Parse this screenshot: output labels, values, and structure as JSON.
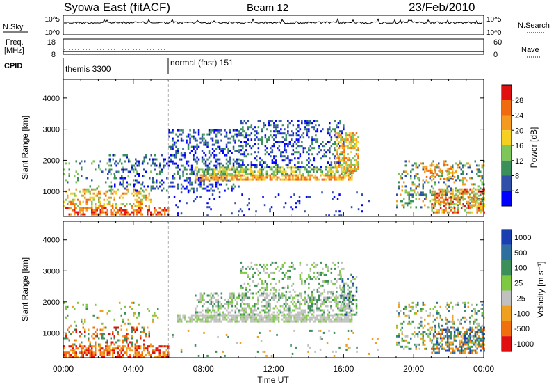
{
  "header": {
    "station": "Syowa East (fitACF)",
    "beam": "Beam 12",
    "date": "23/Feb/2010"
  },
  "status_panels": {
    "nsky_label": "N.Sky",
    "nsky_ticks": [
      "10^5",
      "10^0"
    ],
    "nsearch_label": "N.Search",
    "nsearch_ticks": [
      "10^5",
      "10^0"
    ],
    "freq_label_line1": "Freq.",
    "freq_label_line2": "[MHz]",
    "freq_ticks": [
      "18",
      "8"
    ],
    "nave_label": "Nave",
    "nave_ticks": [
      "60",
      "0"
    ],
    "cpid_label": "CPID",
    "cpid_segments": [
      {
        "name": "themis 3300",
        "start_hour": 0,
        "end_hour": 6
      },
      {
        "name": "normal (fast) 151",
        "start_hour": 6,
        "end_hour": 24
      }
    ]
  },
  "chart_data": [
    {
      "type": "heatmap",
      "name": "power",
      "ylabel": "Slant Range [km]",
      "xlabel": "",
      "xlim": [
        0,
        24
      ],
      "ylim": [
        200,
        4600
      ],
      "y_ticks": [
        "1000",
        "2000",
        "3000",
        "4000"
      ],
      "y_tick_values": [
        1000,
        2000,
        3000,
        4000
      ],
      "colorbar": {
        "label": "Power [dB]",
        "ticks": [
          "4",
          "8",
          "12",
          "16",
          "20",
          "24",
          "28"
        ],
        "tick_values": [
          4,
          8,
          12,
          16,
          20,
          24,
          28
        ],
        "range": [
          0,
          32
        ],
        "colors": [
          "#0000ff",
          "#2f4fa8",
          "#3a8f5a",
          "#7ec55a",
          "#f5d020",
          "#f59a20",
          "#f06a10",
          "#e01010"
        ]
      }
    },
    {
      "type": "heatmap",
      "name": "velocity",
      "ylabel": "Slant Range [km]",
      "xlabel": "Time UT",
      "xlim": [
        0,
        24
      ],
      "ylim": [
        200,
        4600
      ],
      "x_ticks": [
        "00:00",
        "04:00",
        "08:00",
        "12:00",
        "16:00",
        "20:00",
        "00:00"
      ],
      "x_tick_values": [
        0,
        4,
        8,
        12,
        16,
        20,
        24
      ],
      "y_ticks": [
        "1000",
        "2000",
        "3000",
        "4000"
      ],
      "y_tick_values": [
        1000,
        2000,
        3000,
        4000
      ],
      "colorbar": {
        "label": "Velocity [m s⁻¹]",
        "ticks": [
          "1000",
          "500",
          "100",
          "25",
          "-25",
          "-100",
          "-500",
          "-1000"
        ],
        "colors": [
          "#1a3fb0",
          "#2e6fa0",
          "#3d8f5a",
          "#7ec842",
          "#c0c0c0",
          "#f0a020",
          "#f07010",
          "#e01010"
        ]
      }
    }
  ]
}
